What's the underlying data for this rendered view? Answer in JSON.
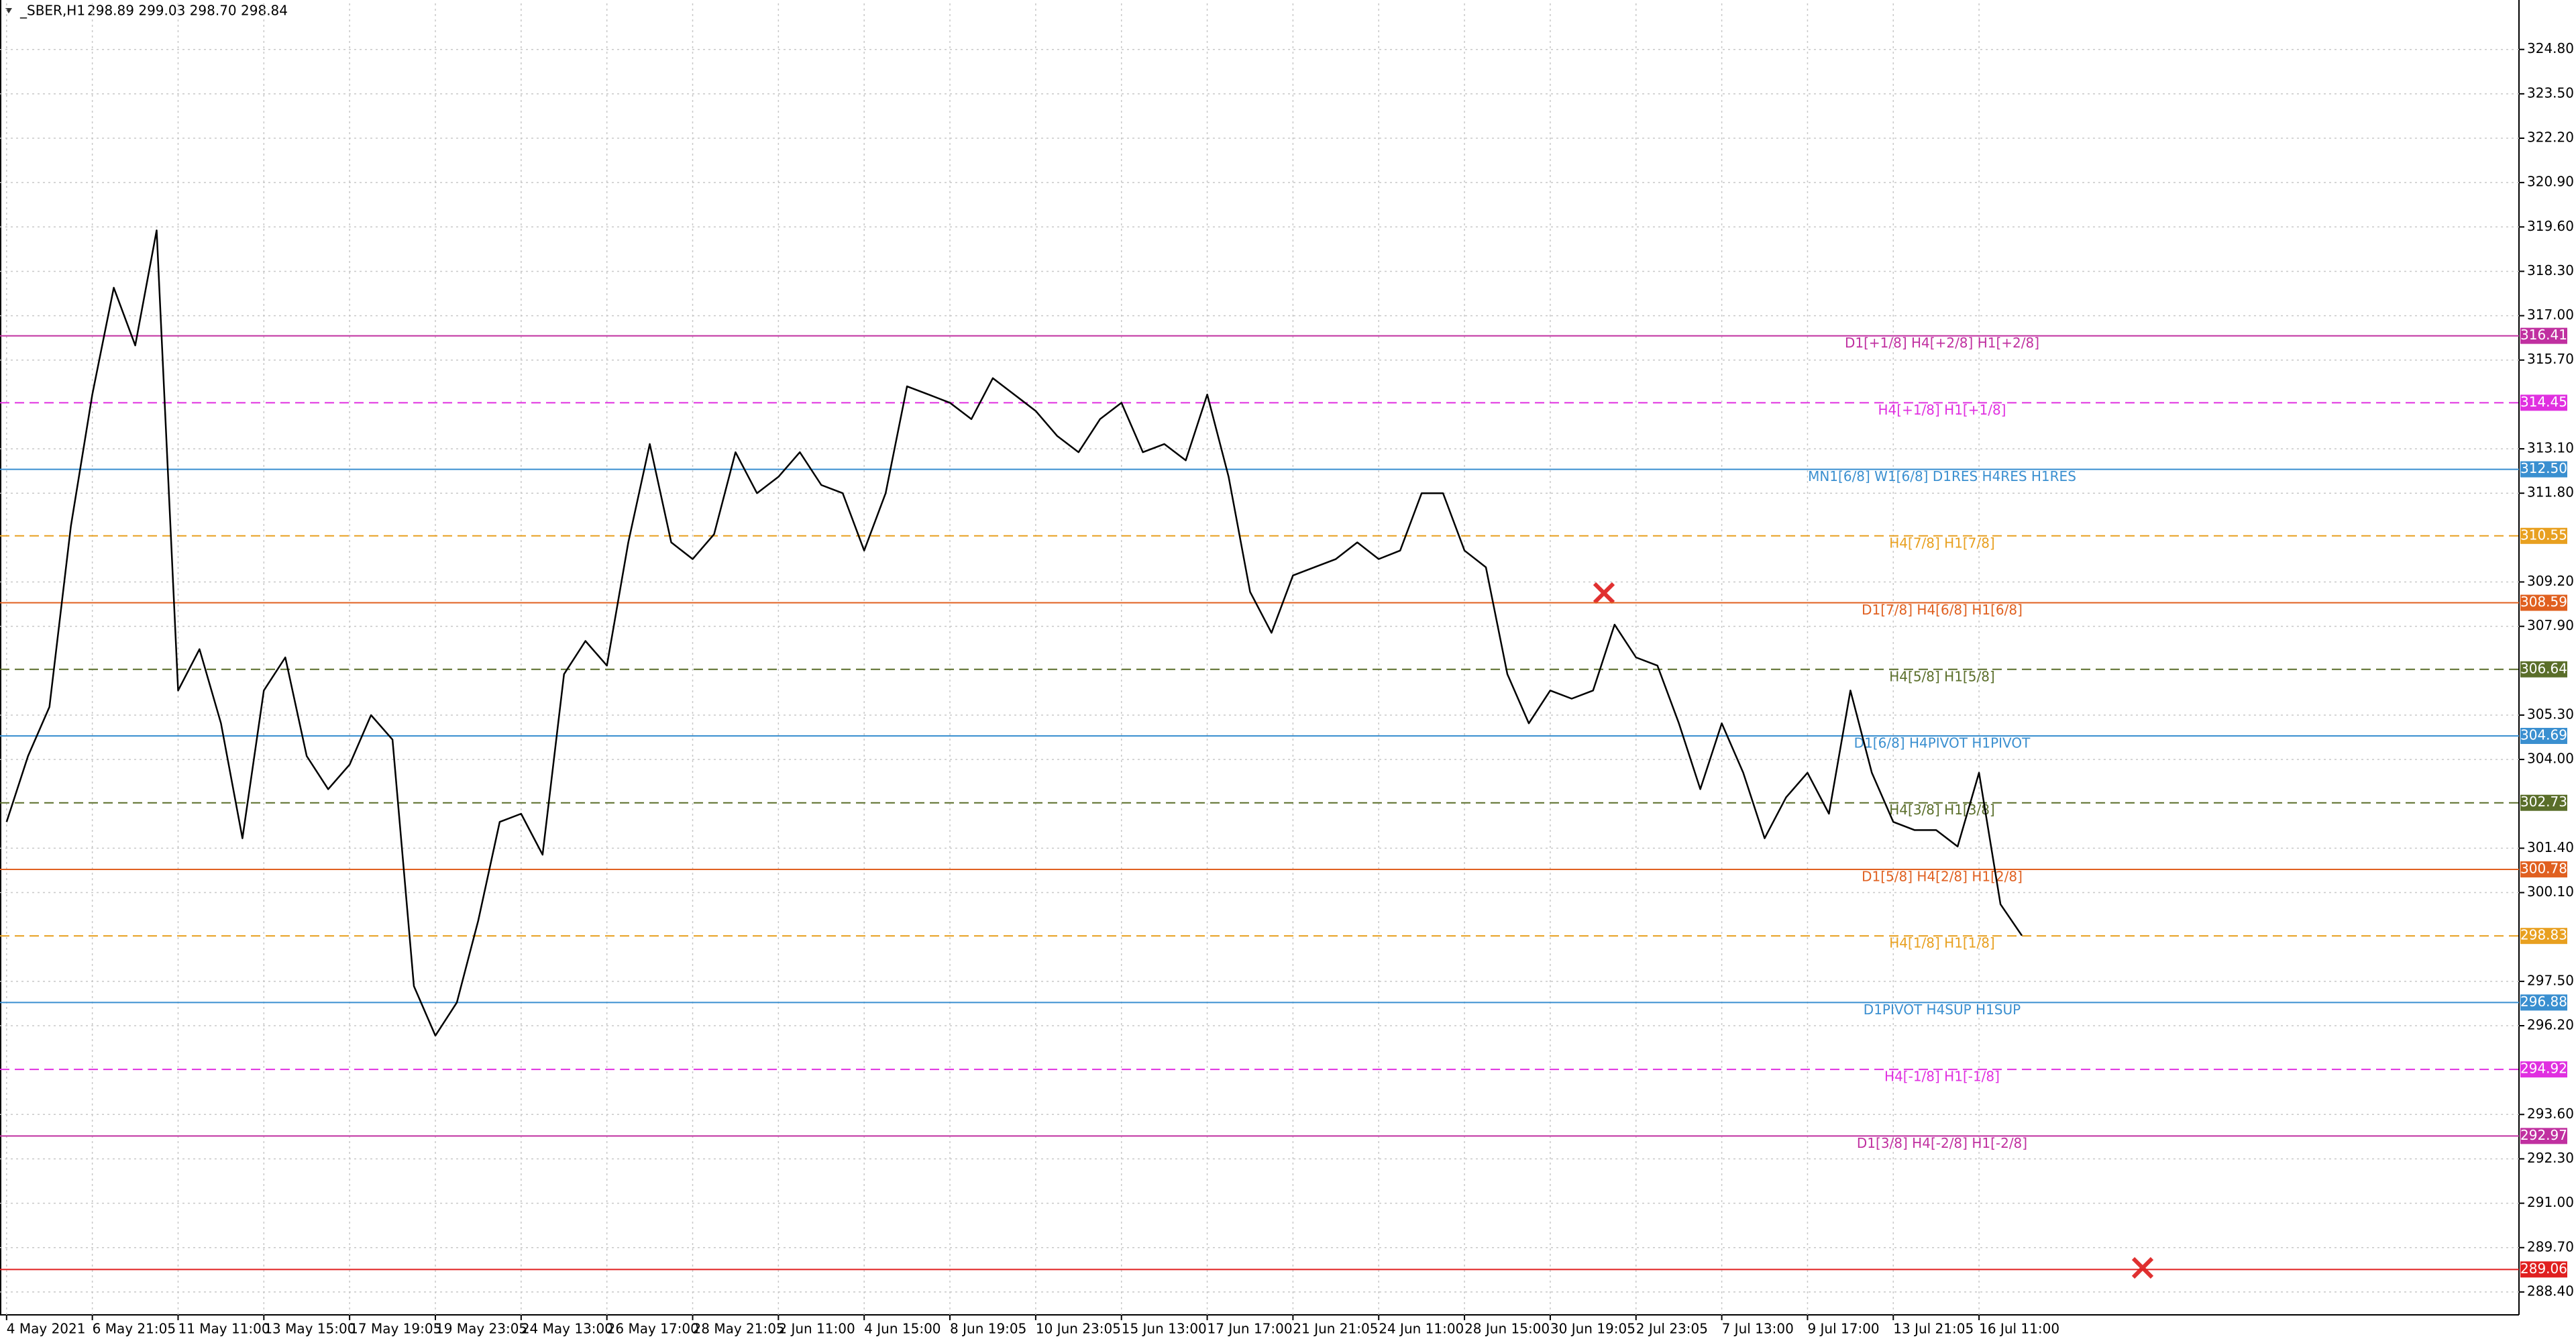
{
  "chart_data": {
    "type": "line",
    "title": "_SBER,H1",
    "subtitle": "298.89 299.03 298.70 298.84",
    "color": "#000000",
    "grid": true,
    "categories": [
      "4 May 2021",
      null,
      null,
      null,
      "6 May 21:05",
      null,
      null,
      null,
      "11 May 11:00",
      null,
      null,
      null,
      "13 May 15:00",
      null,
      null,
      null,
      "17 May 19:05",
      null,
      null,
      null,
      "19 May 23:05",
      null,
      null,
      null,
      "24 May 13:00",
      null,
      null,
      null,
      "26 May 17:00",
      null,
      null,
      null,
      "28 May 21:05",
      null,
      null,
      null,
      "2 Jun 11:00",
      null,
      null,
      null,
      "4 Jun 15:00",
      null,
      null,
      null,
      "8 Jun 19:05",
      null,
      null,
      null,
      "10 Jun 23:05",
      null,
      null,
      null,
      "15 Jun 13:00",
      null,
      null,
      null,
      "17 Jun 17:00",
      null,
      null,
      null,
      "21 Jun 21:05",
      null,
      null,
      null,
      "24 Jun 11:00",
      null,
      null,
      null,
      "28 Jun 15:00",
      null,
      null,
      null,
      "30 Jun 19:05",
      null,
      null,
      null,
      "2 Jul 23:05",
      null,
      null,
      null,
      "7 Jul 13:00",
      null,
      null,
      null,
      "9 Jul 17:00",
      null,
      null,
      null,
      "13 Jul 21:05",
      null,
      null,
      null,
      "16 Jul 11:00",
      null,
      null,
      null,
      null,
      null,
      null,
      null,
      null,
      null,
      null,
      null,
      null,
      null,
      null,
      null,
      null,
      null,
      null,
      null,
      null,
      null,
      null,
      null,
      null,
      null
    ],
    "values": [
      302.17,
      304.1,
      305.54,
      310.84,
      314.69,
      317.82,
      316.13,
      319.5,
      306.02,
      307.23,
      305.06,
      301.69,
      306.02,
      306.99,
      304.1,
      303.13,
      303.85,
      305.3,
      304.58,
      297.36,
      295.91,
      296.88,
      299.28,
      302.17,
      302.41,
      301.21,
      306.5,
      307.47,
      306.75,
      310.36,
      313.24,
      310.36,
      309.87,
      310.6,
      313.0,
      311.8,
      312.28,
      313.0,
      312.04,
      311.8,
      310.12,
      311.8,
      314.93,
      314.69,
      314.45,
      313.97,
      315.17,
      314.69,
      314.21,
      313.48,
      313.0,
      313.97,
      314.45,
      313.0,
      313.24,
      312.76,
      314.69,
      312.28,
      308.91,
      307.71,
      309.39,
      309.63,
      309.87,
      310.36,
      309.87,
      310.12,
      311.8,
      311.8,
      310.12,
      309.63,
      306.5,
      305.06,
      306.02,
      305.78,
      306.02,
      307.95,
      306.99,
      306.75,
      305.06,
      303.13,
      305.06,
      303.61,
      301.69,
      302.89,
      303.61,
      302.41,
      306.02,
      303.61,
      302.17,
      301.93,
      301.93,
      301.45,
      303.61,
      299.76,
      298.84,
      null,
      null,
      null,
      null,
      null,
      null,
      null,
      null,
      null,
      null,
      null,
      null,
      null,
      null,
      null,
      null,
      null,
      null,
      null,
      null,
      null,
      null,
      null
    ],
    "ylim": [
      287.73,
      326.15
    ],
    "yticks": [
      {
        "value": 324.8,
        "label": "324.80"
      },
      {
        "value": 323.5,
        "label": "323.50"
      },
      {
        "value": 322.2,
        "label": "322.20"
      },
      {
        "value": 320.9,
        "label": "320.90"
      },
      {
        "value": 319.6,
        "label": "319.60"
      },
      {
        "value": 318.3,
        "label": "318.30"
      },
      {
        "value": 317,
        "label": "317.00"
      },
      {
        "value": 315.7,
        "label": "315.70"
      },
      {
        "value": 313.1,
        "label": "313.10"
      },
      {
        "value": 311.8,
        "label": "311.80"
      },
      {
        "value": 309.2,
        "label": "309.20"
      },
      {
        "value": 307.9,
        "label": "307.90"
      },
      {
        "value": 305.3,
        "label": "305.30"
      },
      {
        "value": 304,
        "label": "304.00"
      },
      {
        "value": 301.4,
        "label": "301.40"
      },
      {
        "value": 300.1,
        "label": "300.10"
      },
      {
        "value": 297.5,
        "label": "297.50"
      },
      {
        "value": 296.2,
        "label": "296.20"
      },
      {
        "value": 293.6,
        "label": "293.60"
      },
      {
        "value": 292.3,
        "label": "292.30"
      },
      {
        "value": 291,
        "label": "291.00"
      },
      {
        "value": 289.7,
        "label": "289.70"
      },
      {
        "value": 288.4,
        "label": "288.40"
      }
    ],
    "levels": [
      {
        "name": "D1[+1/8] H4[+2/8] H1[+2/8]",
        "value": 316.41,
        "tag": "316.41",
        "color": "#c030a0",
        "dashed": false
      },
      {
        "name": "H4[+1/8] H1[+1/8]",
        "value": 314.45,
        "tag": "314.45",
        "color": "#e030e0",
        "dashed": true
      },
      {
        "name": "MN1[6/8] W1[6/8] D1RES H4RES H1RES",
        "value": 312.5,
        "tag": "312.50",
        "color": "#3a8fd0",
        "dashed": false
      },
      {
        "name": "H4[7/8] H1[7/8]",
        "value": 310.55,
        "tag": "310.55",
        "color": "#e8a020",
        "dashed": true
      },
      {
        "name": "D1[7/8] H4[6/8] H1[6/8]",
        "value": 308.59,
        "tag": "308.59",
        "color": "#e06020",
        "dashed": false
      },
      {
        "name": "H4[5/8] H1[5/8]",
        "value": 306.64,
        "tag": "306.64",
        "color": "#5a6e2a",
        "dashed": true
      },
      {
        "name": "D1[6/8] H4PIVOT H1PIVOT",
        "value": 304.69,
        "tag": "304.69",
        "color": "#3a8fd0",
        "dashed": false
      },
      {
        "name": "H4[3/8] H1[3/8]",
        "value": 302.73,
        "tag": "302.73",
        "color": "#5a6e2a",
        "dashed": true
      },
      {
        "name": "D1[5/8] H4[2/8] H1[2/8]",
        "value": 300.78,
        "tag": "300.78",
        "color": "#e06020",
        "dashed": false
      },
      {
        "name": "H4[1/8] H1[1/8]",
        "value": 298.83,
        "tag": "298.83",
        "color": "#e8a020",
        "dashed": true
      },
      {
        "name": "D1PIVOT H4SUP H1SUP",
        "value": 296.88,
        "tag": "296.88",
        "color": "#3a8fd0",
        "dashed": false
      },
      {
        "name": "H4[-1/8] H1[-1/8]",
        "value": 294.92,
        "tag": "294.92",
        "color": "#e030e0",
        "dashed": true
      },
      {
        "name": "D1[3/8] H4[-2/8] H1[-2/8]",
        "value": 292.97,
        "tag": "292.97",
        "color": "#c030a0",
        "dashed": false
      },
      {
        "value": 289.06,
        "tag": "289.06",
        "color": "#e02020",
        "dashed": false
      }
    ]
  }
}
